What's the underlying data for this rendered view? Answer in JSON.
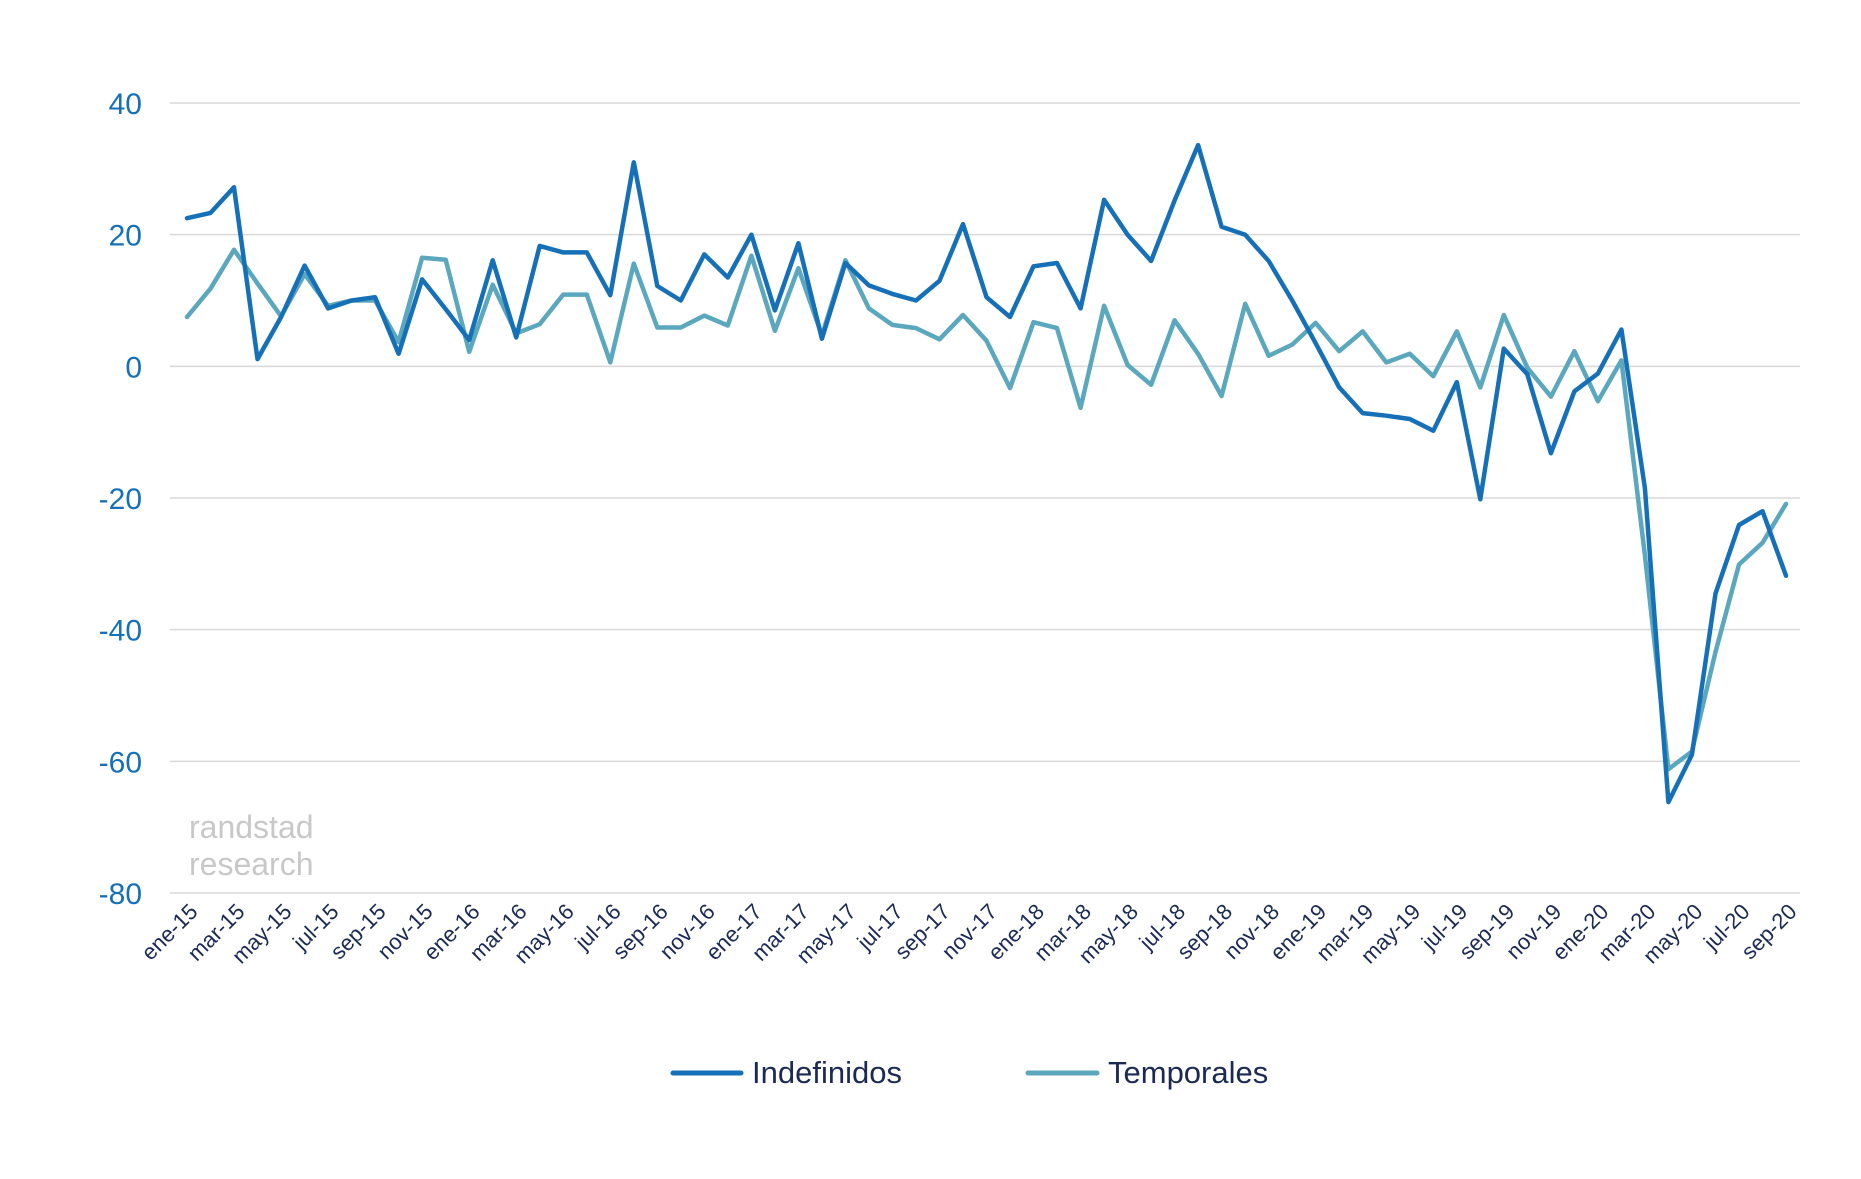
{
  "chart_data": {
    "type": "line",
    "xlabel": "",
    "ylabel": "",
    "ylim": [
      -80,
      40
    ],
    "yticks": [
      40,
      20,
      0,
      -20,
      -40,
      -60,
      -80
    ],
    "grid": true,
    "legend_position": "bottom",
    "x": [
      "ene-15",
      "feb-15",
      "mar-15",
      "abr-15",
      "may-15",
      "jun-15",
      "jul-15",
      "ago-15",
      "sep-15",
      "oct-15",
      "nov-15",
      "dic-15",
      "ene-16",
      "feb-16",
      "mar-16",
      "abr-16",
      "may-16",
      "jun-16",
      "jul-16",
      "ago-16",
      "sep-16",
      "oct-16",
      "nov-16",
      "dic-16",
      "ene-17",
      "feb-17",
      "mar-17",
      "abr-17",
      "may-17",
      "jun-17",
      "jul-17",
      "ago-17",
      "sep-17",
      "oct-17",
      "nov-17",
      "dic-17",
      "ene-18",
      "feb-18",
      "mar-18",
      "abr-18",
      "may-18",
      "jun-18",
      "jul-18",
      "ago-18",
      "sep-18",
      "oct-18",
      "nov-18",
      "dic-18",
      "ene-19",
      "feb-19",
      "mar-19",
      "abr-19",
      "may-19",
      "jun-19",
      "jul-19",
      "ago-19",
      "sep-19",
      "oct-19",
      "nov-19",
      "dic-19",
      "ene-20",
      "feb-20",
      "mar-20",
      "abr-20",
      "may-20",
      "jun-20",
      "jul-20",
      "ago-20",
      "sep-20"
    ],
    "tick_labels": [
      "ene-15",
      "mar-15",
      "may-15",
      "jul-15",
      "sep-15",
      "nov-15",
      "ene-16",
      "mar-16",
      "may-16",
      "jul-16",
      "sep-16",
      "nov-16",
      "ene-17",
      "mar-17",
      "may-17",
      "jul-17",
      "sep-17",
      "nov-17",
      "ene-18",
      "mar-18",
      "may-18",
      "jul-18",
      "sep-18",
      "nov-18",
      "ene-19",
      "mar-19",
      "may-19",
      "jul-19",
      "sep-19",
      "nov-19",
      "ene-20",
      "mar-20",
      "may-20",
      "jul-20",
      "sep-20"
    ],
    "series": [
      {
        "name": "Indefinidos",
        "color": "#1670b8",
        "values": [
          22.5,
          23.3,
          27.2,
          1.1,
          7.5,
          15.3,
          8.8,
          10,
          10.5,
          1.9,
          13.2,
          8.7,
          4,
          16.1,
          4.4,
          18.3,
          17.3,
          17.3,
          10.8,
          31,
          12.2,
          10,
          17,
          13.5,
          20,
          8.5,
          18.7,
          4.2,
          15.7,
          12.3,
          11,
          10,
          13,
          21.6,
          10.5,
          7.5,
          15.2,
          15.7,
          8.8,
          25.3,
          20,
          16,
          25.2,
          33.6,
          21.2,
          20,
          16,
          10,
          3.5,
          -3.2,
          -7.1,
          -7.5,
          -8,
          -9.8,
          -2.4,
          -20.2,
          2.7,
          -1.2,
          -13.2,
          -3.8,
          -1.1,
          5.6,
          -18.5,
          -66.2,
          -59,
          -34.5,
          -24.1,
          -22,
          -31.8
        ]
      },
      {
        "name": "Temporales",
        "color": "#5aa7be",
        "values": [
          7.5,
          11.8,
          17.7,
          12.6,
          7.6,
          14,
          9.2,
          10,
          10,
          3.7,
          16.5,
          16.2,
          2.2,
          12.4,
          5,
          6.4,
          10.9,
          10.9,
          0.6,
          15.6,
          5.9,
          5.9,
          7.7,
          6.2,
          16.8,
          5.4,
          14.9,
          4.7,
          16.1,
          8.8,
          6.3,
          5.8,
          4.1,
          7.8,
          3.9,
          -3.3,
          6.7,
          5.8,
          -6.3,
          9.2,
          0.2,
          -2.8,
          7,
          1.9,
          -4.5,
          9.5,
          1.6,
          3.3,
          6.6,
          2.3,
          5.3,
          0.6,
          1.9,
          -1.5,
          5.3,
          -3.2,
          7.8,
          -0.2,
          -4.6,
          2.3,
          -5.3,
          0.9,
          -28.7,
          -61.2,
          -58.5,
          -43.4,
          -30.1,
          -26.8,
          -20.9
        ]
      }
    ],
    "annotations": [
      "randstad",
      "research"
    ]
  },
  "colors": {
    "grid": "#d9d9d9",
    "ytick": "#1670b8",
    "xtick": "#1b2a55",
    "watermark": "#c8c8c8"
  }
}
